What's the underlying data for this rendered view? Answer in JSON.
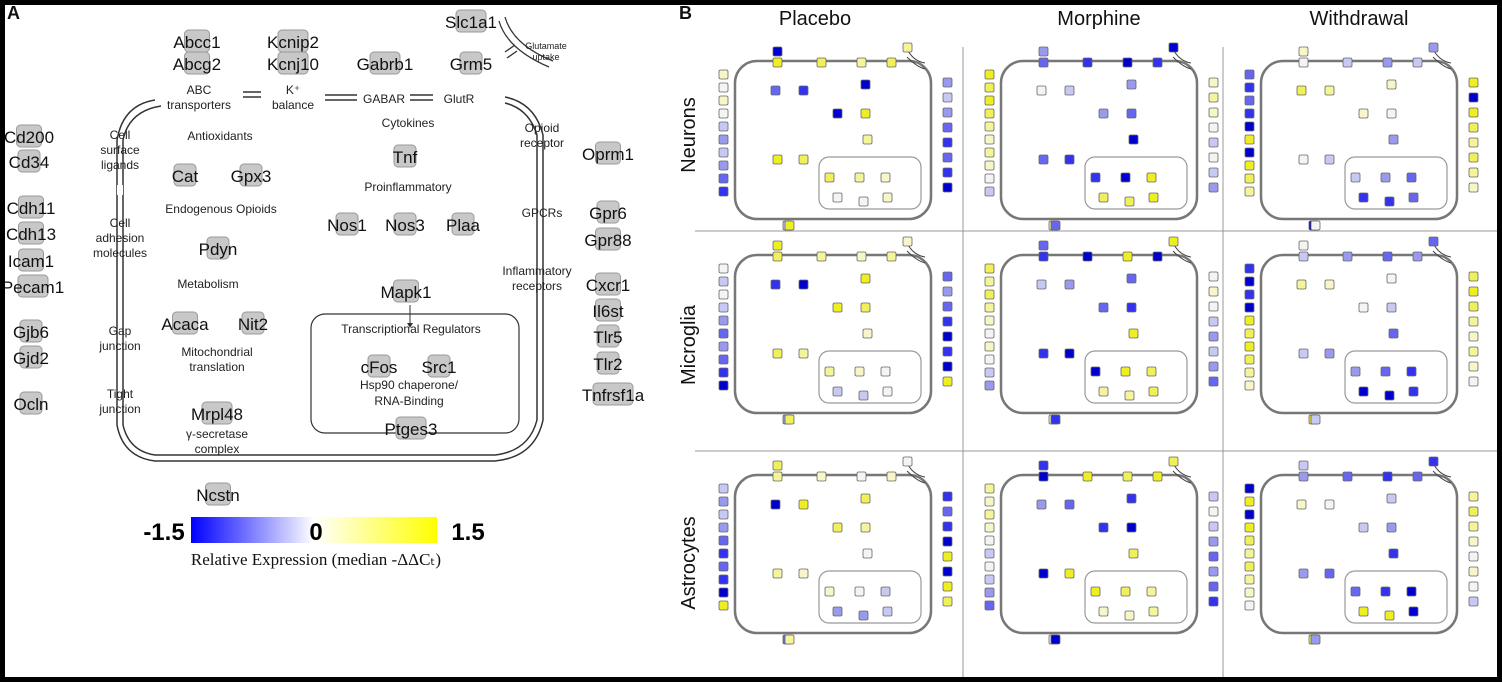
{
  "panels": {
    "a_label": "A",
    "b_label": "B"
  },
  "panel_a": {
    "genes": {
      "abcc1": "Abcc1",
      "abcg2": "Abcg2",
      "kcnip2": "Kcnip2",
      "kcnj10": "Kcnj10",
      "gabrb1": "Gabrb1",
      "slc1a1": "Slc1a1",
      "grm5": "Grm5",
      "cd200": "Cd200",
      "cd34": "Cd34",
      "cdh11": "Cdh11",
      "cdh13": "Cdh13",
      "icam1": "Icam1",
      "pecam1": "Pecam1",
      "gjb6": "Gjb6",
      "gjd2": "Gjd2",
      "ocln": "Ocln",
      "cat": "Cat",
      "gpx3": "Gpx3",
      "pdyn": "Pdyn",
      "acaca": "Acaca",
      "nit2": "Nit2",
      "mrpl48": "Mrpl48",
      "ncstn": "Ncstn",
      "tnf": "Tnf",
      "nos1": "Nos1",
      "nos3": "Nos3",
      "plaa": "Plaa",
      "mapk1": "Mapk1",
      "cfos": "cFos",
      "src1": "Src1",
      "ptges3": "Ptges3",
      "oprm1": "Oprm1",
      "gpr6": "Gpr6",
      "gpr88": "Gpr88",
      "cxcr1": "Cxcr1",
      "il6st": "Il6st",
      "tlr5": "Tlr5",
      "tlr2": "Tlr2",
      "tnfrsf1a": "Tnfrsf1a"
    },
    "categories": {
      "abc_1": "ABC",
      "abc_2": "transporters",
      "k_1": "K⁺",
      "k_2": "balance",
      "gabar": "GABAR",
      "glutr": "GlutR",
      "glut_1": "Glutamate",
      "glut_2": "uptake",
      "csl_1": "Cell",
      "csl_2": "surface",
      "csl_3": "ligands",
      "cam_1": "Cell",
      "cam_2": "adhesion",
      "cam_3": "molecules",
      "gap_1": "Gap",
      "gap_2": "junction",
      "tight_1": "Tight",
      "tight_2": "junction",
      "antioxidants": "Antioxidants",
      "endo_opioids": "Endogenous Opioids",
      "metabolism": "Metabolism",
      "mito_1": "Mitochondrial",
      "mito_2": "translation",
      "gsec_1": "γ-secretase",
      "gsec_2": "complex",
      "cytokines": "Cytokines",
      "proinflam": "Proinflammatory",
      "transcr": "Transcriptional Regulators",
      "hsp_1": "Hsp90 chaperone/",
      "hsp_2": "RNA-Binding",
      "opioid_1": "Opioid",
      "opioid_2": "receptor",
      "gpcrs": "GPCRs",
      "inflam_1": "Inflammatory",
      "inflam_2": "receptors"
    },
    "colorbar": {
      "min_label": "-1.5",
      "mid_label": "0",
      "max_label": "1.5",
      "title": "Relative Expression (median -ΔΔCₜ)",
      "color_low": "#0000ff",
      "color_mid": "#ffffff",
      "color_high": "#ffff00"
    }
  },
  "panel_b": {
    "columns": [
      "Placebo",
      "Morphine",
      "Withdrawal"
    ],
    "rows": [
      "Neurons",
      "Microglia",
      "Astrocytes"
    ]
  }
}
